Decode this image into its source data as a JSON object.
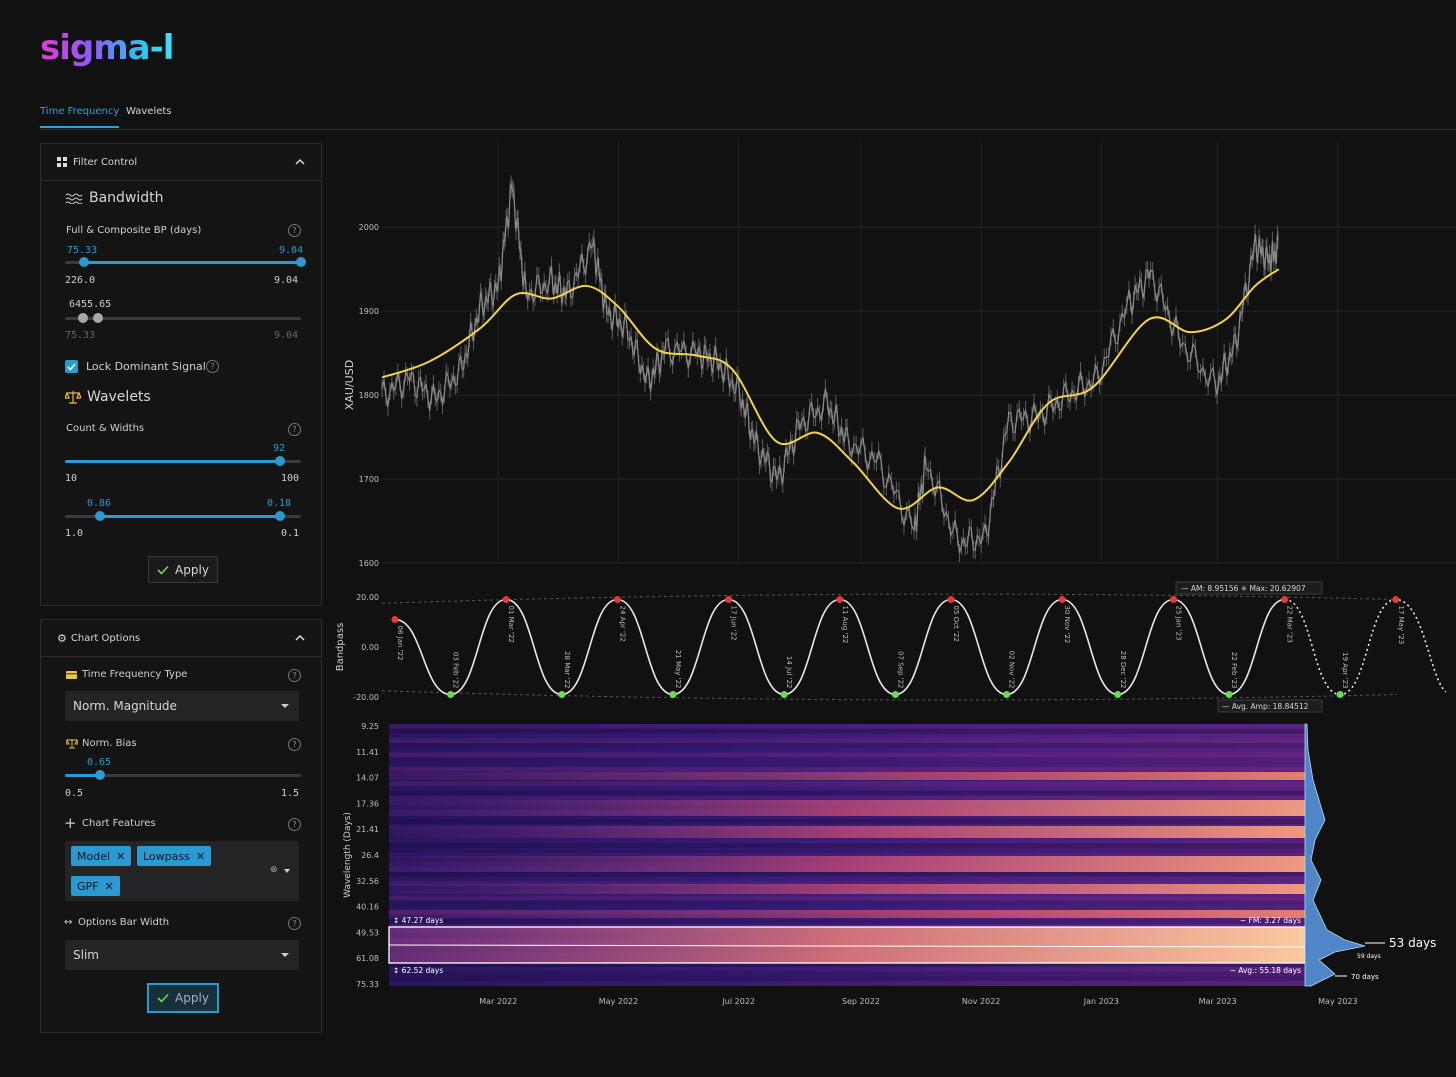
{
  "app": {
    "logo": "sigma-l"
  },
  "tabs": [
    {
      "label": "Time Frequency"
    },
    {
      "label": "Wavelets"
    }
  ],
  "filter_control": {
    "title": "Filter Control",
    "bandwidth": {
      "title": "Bandwidth",
      "bp_label": "Full & Composite BP (days)",
      "slider1": {
        "val_low": "75.33",
        "val_high": "9.04",
        "min": "226.0",
        "max": "9.04"
      },
      "slider2": {
        "val_overlap": "6455.65",
        "min": "75.33",
        "max": "9.04"
      }
    },
    "lock_label": "Lock Dominant Signal",
    "wavelets": {
      "title": "Wavelets",
      "count_label": "Count & Widths",
      "count": {
        "val": "92",
        "min": "10",
        "max": "100"
      },
      "widths": {
        "val_low": "0.86",
        "val_high": "0.18",
        "min": "1.0",
        "max": "0.1"
      }
    },
    "apply_label": "Apply"
  },
  "chart_options": {
    "title": "Chart Options",
    "tf_type_label": "Time Frequency Type",
    "tf_type_value": "Norm. Magnitude",
    "bias_label": "Norm. Bias",
    "bias": {
      "val": "0.65",
      "min": "0.5",
      "max": "1.5"
    },
    "features_label": "Chart Features",
    "features": [
      "Model",
      "Lowpass",
      "GPF"
    ],
    "bar_width_label": "Options Bar Width",
    "bar_width_value": "Slim",
    "apply_label": "Apply"
  },
  "colors": {
    "accent": "#2a9ad0",
    "price": "#8a8a8a",
    "lowpass": "#f2d34b",
    "peak": "#e53935",
    "trough": "#6bdc4a"
  },
  "chart_data": [
    {
      "type": "line",
      "ylabel": "XAU/USD",
      "ylim": [
        1600,
        2080
      ],
      "yticks": [
        1600,
        1700,
        1800,
        1900,
        2000
      ],
      "x_range": [
        "2022-01-01",
        "2023-05-31"
      ],
      "series": [
        {
          "values": [
            [
              "2022-01-01",
              1800
            ],
            [
              "2022-01-15",
              1820
            ],
            [
              "2022-01-28",
              1795
            ],
            [
              "2022-02-10",
              1830
            ],
            [
              "2022-02-20",
              1905
            ],
            [
              "2022-03-01",
              1930
            ],
            [
              "2022-03-08",
              2050
            ],
            [
              "2022-03-15",
              1920
            ],
            [
              "2022-03-28",
              1935
            ],
            [
              "2022-04-05",
              1920
            ],
            [
              "2022-04-18",
              1980
            ],
            [
              "2022-04-25",
              1900
            ],
            [
              "2022-05-05",
              1880
            ],
            [
              "2022-05-16",
              1815
            ],
            [
              "2022-05-25",
              1855
            ],
            [
              "2022-06-10",
              1850
            ],
            [
              "2022-06-20",
              1840
            ],
            [
              "2022-07-01",
              1805
            ],
            [
              "2022-07-10",
              1740
            ],
            [
              "2022-07-21",
              1700
            ],
            [
              "2022-08-01",
              1765
            ],
            [
              "2022-08-15",
              1790
            ],
            [
              "2022-08-25",
              1745
            ],
            [
              "2022-09-10",
              1720
            ],
            [
              "2022-09-28",
              1640
            ],
            [
              "2022-10-04",
              1720
            ],
            [
              "2022-10-20",
              1625
            ],
            [
              "2022-11-03",
              1630
            ],
            [
              "2022-11-15",
              1770
            ],
            [
              "2022-11-30",
              1775
            ],
            [
              "2022-12-15",
              1800
            ],
            [
              "2022-12-30",
              1820
            ],
            [
              "2023-01-15",
              1910
            ],
            [
              "2023-01-26",
              1945
            ],
            [
              "2023-02-10",
              1865
            ],
            [
              "2023-02-28",
              1810
            ],
            [
              "2023-03-10",
              1860
            ],
            [
              "2023-03-20",
              1980
            ],
            [
              "2023-03-27",
              1960
            ],
            [
              "2023-04-01",
              1975
            ]
          ]
        },
        {
          "name": "Lowpass",
          "values": [
            [
              "2022-01-01",
              1821
            ],
            [
              "2022-01-25",
              1840
            ],
            [
              "2022-02-20",
              1880
            ],
            [
              "2022-03-10",
              1920
            ],
            [
              "2022-03-28",
              1915
            ],
            [
              "2022-04-15",
              1930
            ],
            [
              "2022-05-01",
              1905
            ],
            [
              "2022-05-20",
              1855
            ],
            [
              "2022-06-10",
              1847
            ],
            [
              "2022-06-28",
              1830
            ],
            [
              "2022-07-20",
              1745
            ],
            [
              "2022-08-10",
              1755
            ],
            [
              "2022-08-28",
              1720
            ],
            [
              "2022-09-20",
              1665
            ],
            [
              "2022-10-10",
              1690
            ],
            [
              "2022-10-28",
              1675
            ],
            [
              "2022-11-15",
              1720
            ],
            [
              "2022-12-05",
              1790
            ],
            [
              "2022-12-28",
              1810
            ],
            [
              "2023-01-25",
              1890
            ],
            [
              "2023-02-15",
              1875
            ],
            [
              "2023-03-05",
              1890
            ],
            [
              "2023-03-20",
              1930
            ],
            [
              "2023-04-01",
              1950
            ]
          ]
        }
      ]
    },
    {
      "type": "line",
      "ylabel": "Bandpass",
      "ylim": [
        -20,
        20
      ],
      "yticks": [
        "20.00",
        "0.00",
        "-20.00"
      ],
      "extremes": [
        {
          "label": "06 Jan '22",
          "kind": "peak"
        },
        {
          "label": "03 Feb '22",
          "kind": "trough"
        },
        {
          "label": "01 Mar '22",
          "kind": "peak"
        },
        {
          "label": "28 Mar '22",
          "kind": "trough"
        },
        {
          "label": "24 Apr '22",
          "kind": "peak"
        },
        {
          "label": "21 May '22",
          "kind": "trough"
        },
        {
          "label": "17 Jun '22",
          "kind": "peak"
        },
        {
          "label": "14 Jul '22",
          "kind": "trough"
        },
        {
          "label": "11 Aug '22",
          "kind": "peak"
        },
        {
          "label": "07 Sep '22",
          "kind": "trough"
        },
        {
          "label": "05 Oct '22",
          "kind": "peak"
        },
        {
          "label": "02 Nov '22",
          "kind": "trough"
        },
        {
          "label": "30 Nov '22",
          "kind": "peak"
        },
        {
          "label": "28 Dec '22",
          "kind": "trough"
        },
        {
          "label": "25 Jan '23",
          "kind": "peak"
        },
        {
          "label": "22 Feb '23",
          "kind": "trough"
        },
        {
          "label": "22 Mar '23",
          "kind": "peak"
        },
        {
          "label": "19 Apr '23",
          "kind": "trough",
          "projected": true
        },
        {
          "label": "17 May '23",
          "kind": "peak",
          "projected": true
        }
      ],
      "annotations": {
        "am": "AM: 8.95156",
        "max": "Max: 20.62907",
        "avg_amp": "Avg. Amp: 18.84512"
      }
    },
    {
      "type": "heatmap",
      "ylabel": "Wavelength (Days)",
      "yticks": [
        "9.25",
        "11.41",
        "14.07",
        "17.36",
        "21.41",
        "26.4",
        "32.56",
        "40.16",
        "49.53",
        "61.08",
        "75.33"
      ],
      "xticks": [
        "Mar 2022",
        "May 2022",
        "Jul 2022",
        "Sep 2022",
        "Nov 2022",
        "Jan 2023",
        "Mar 2023",
        "May 2023"
      ],
      "band": {
        "upper": "47.27 days",
        "lower": "62.52 days",
        "fm": "FM: 3.27 days",
        "avg": "Avg.: 55.18 days"
      },
      "dominant": "53 days",
      "secondary": [
        "59 days",
        "70 days"
      ]
    }
  ]
}
